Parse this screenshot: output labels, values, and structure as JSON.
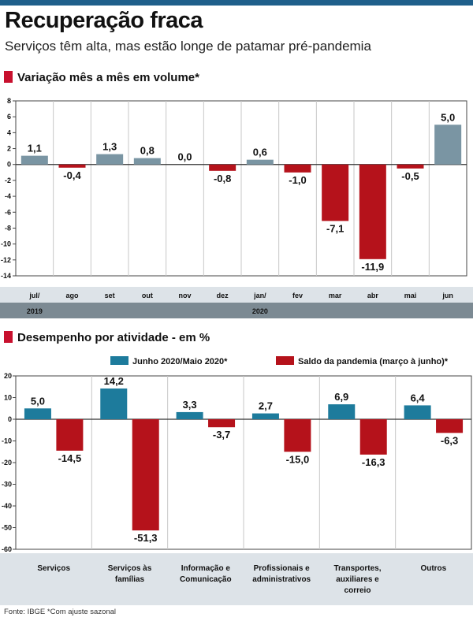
{
  "title": "Recuperação fraca",
  "subtitle": "Serviços têm alta, mas estão longe de patamar pré-pandemia",
  "source": "Fonte: IBGE *Com ajuste sazonal",
  "colors": {
    "blue": "#1d7b9c",
    "gray": "#7a95a3",
    "red": "#b5121b",
    "accent": "#c8102e",
    "band": "#7c8a93"
  },
  "chart_data": [
    {
      "type": "bar",
      "title": "Variação mês a mês em volume*",
      "categories": [
        "jul/",
        "ago",
        "set",
        "out",
        "nov",
        "dez",
        "jan/",
        "fev",
        "mar",
        "abr",
        "mai",
        "jun"
      ],
      "year_labels": [
        "2019",
        "2020"
      ],
      "values": [
        1.1,
        -0.4,
        1.3,
        0.8,
        0.0,
        -0.8,
        0.6,
        -1.0,
        -7.1,
        -11.9,
        -0.5,
        5.0
      ],
      "value_labels": [
        "1,1",
        "-0,4",
        "1,3",
        "0,8",
        "0,0",
        "-0,8",
        "0,6",
        "-1,0",
        "-7,1",
        "-11,9",
        "-0,5",
        "5,0"
      ],
      "yticks": [
        "8",
        "6",
        "4",
        "2",
        "0",
        "-2",
        "-4",
        "-6",
        "-8",
        "-10",
        "-12",
        "-14"
      ],
      "ylim": [
        -14,
        8
      ],
      "grid": true
    },
    {
      "type": "bar",
      "title": "Desempenho por atividade - em %",
      "categories": [
        [
          "Serviços"
        ],
        [
          "Serviços às",
          "famílias"
        ],
        [
          "Informação e",
          "Comunicação"
        ],
        [
          "Profissionais e",
          "administrativos"
        ],
        [
          "Transportes,",
          "auxiliares e",
          "correio"
        ],
        [
          "Outros"
        ]
      ],
      "series": [
        {
          "name": "Junho 2020/Maio 2020*",
          "values": [
            5.0,
            14.2,
            3.3,
            2.7,
            6.9,
            6.4
          ],
          "labels": [
            "5,0",
            "14,2",
            "3,3",
            "2,7",
            "6,9",
            "6,4"
          ]
        },
        {
          "name": "Saldo da pandemia (março à junho)*",
          "values": [
            -14.5,
            -51.3,
            -3.7,
            -15.0,
            -16.3,
            -6.3
          ],
          "labels": [
            "-14,5",
            "-51,3",
            "-3,7",
            "-15,0",
            "-16,3",
            "-6,3"
          ]
        }
      ],
      "yticks": [
        "20",
        "10",
        "0",
        "-10",
        "-20",
        "-30",
        "-40",
        "-50",
        "-60"
      ],
      "ylim": [
        -60,
        20
      ],
      "legend": "top",
      "grid": true
    }
  ]
}
